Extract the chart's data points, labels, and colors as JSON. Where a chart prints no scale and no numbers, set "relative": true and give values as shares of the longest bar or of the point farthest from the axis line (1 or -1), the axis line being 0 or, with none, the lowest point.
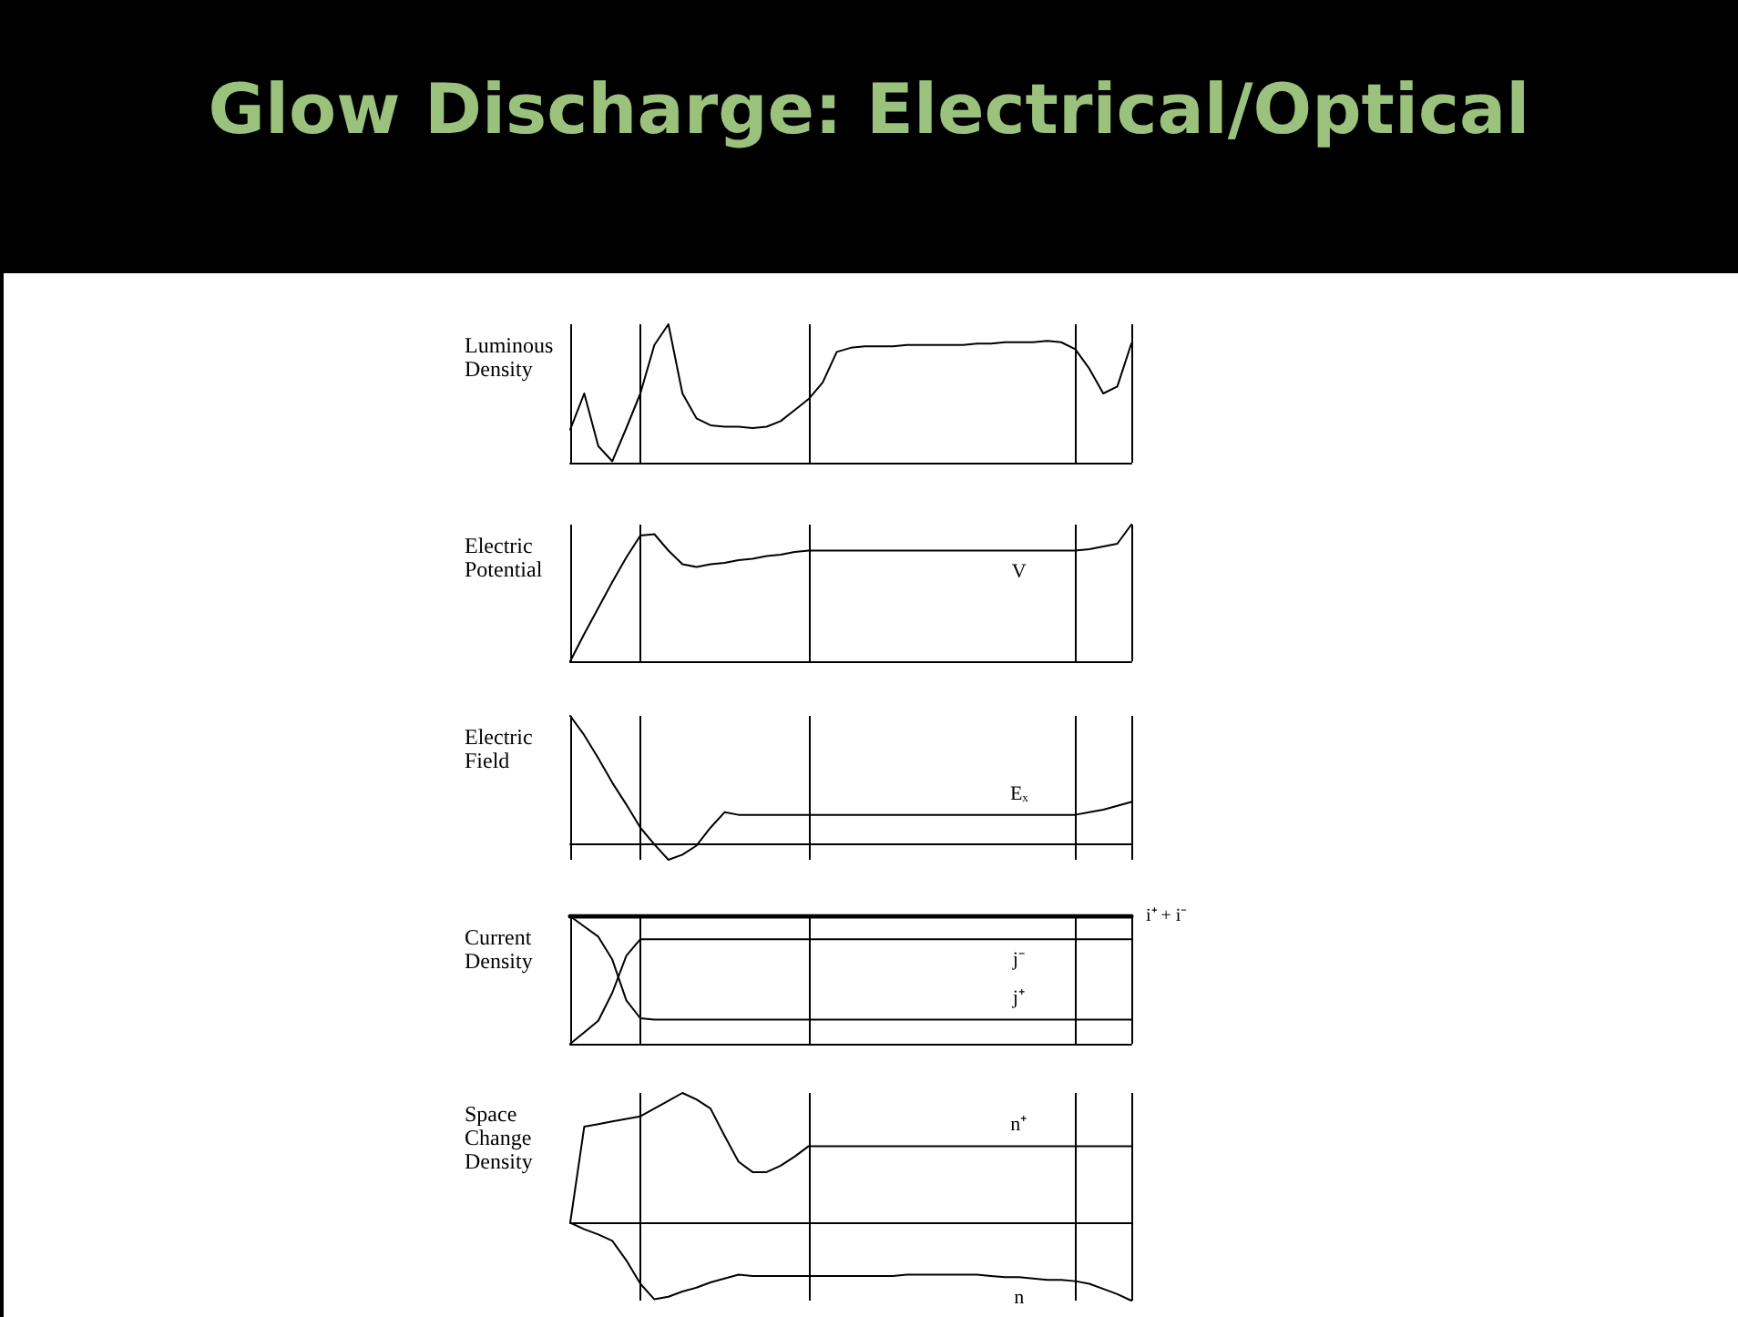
{
  "chart_data": [
    {
      "type": "line",
      "title": "Glow Discharge:  Electrical/Optical",
      "ylabel": "Luminous Density",
      "relative": true,
      "grid": "x",
      "legend": false,
      "marker": "none",
      "line_style": "solid",
      "categories": [
        null,
        null,
        null,
        null,
        null,
        null,
        null,
        null,
        null,
        null,
        null,
        null,
        null,
        null,
        null,
        null,
        null,
        null,
        null,
        null,
        null,
        null,
        null,
        null,
        null,
        null,
        null,
        null,
        null,
        null,
        null,
        null,
        null,
        null,
        null,
        null,
        null,
        null,
        null,
        null,
        null
      ],
      "series": [
        {
          "color": "#000000",
          "values": [
            0.24,
            0.5,
            0.12,
            0.01,
            0.25,
            0.5,
            0.85,
            1.0,
            0.5,
            0.32,
            0.27,
            0.26,
            0.26,
            0.25,
            0.26,
            0.3,
            0.38,
            0.46,
            0.58,
            0.8,
            0.83,
            0.84,
            0.84,
            0.84,
            0.85,
            0.85,
            0.85,
            0.85,
            0.85,
            0.86,
            0.86,
            0.87,
            0.87,
            0.87,
            0.88,
            0.87,
            0.82,
            0.68,
            0.5,
            0.55,
            0.86
          ]
        }
      ]
    },
    {
      "type": "line",
      "ylabel": "Electric Potential",
      "relative": true,
      "grid": "x",
      "legend": false,
      "marker": "none",
      "line_style": "solid",
      "categories": [
        null,
        null,
        null,
        null,
        null,
        null,
        null,
        null,
        null,
        null,
        null,
        null,
        null,
        null,
        null,
        null,
        null,
        null,
        null,
        null,
        null,
        null,
        null,
        null,
        null,
        null,
        null,
        null,
        null,
        null,
        null,
        null,
        null,
        null,
        null,
        null,
        null,
        null,
        null,
        null,
        null
      ],
      "series": [
        {
          "name": "V",
          "color": "#000000",
          "values": [
            0,
            0.2,
            0.39,
            0.58,
            0.76,
            0.92,
            0.93,
            0.81,
            0.71,
            0.69,
            0.71,
            0.72,
            0.74,
            0.75,
            0.77,
            0.78,
            0.8,
            0.81,
            0.81,
            0.81,
            0.81,
            0.81,
            0.81,
            0.81,
            0.81,
            0.81,
            0.81,
            0.81,
            0.81,
            0.81,
            0.81,
            0.81,
            0.81,
            0.81,
            0.81,
            0.81,
            0.81,
            0.82,
            0.84,
            0.86,
            1.0
          ]
        }
      ]
    },
    {
      "type": "line",
      "ylabel": "Electric Field",
      "relative": true,
      "grid": "x",
      "legend": false,
      "marker": "none",
      "line_style": "solid",
      "categories": [
        null,
        null,
        null,
        null,
        null,
        null,
        null,
        null,
        null,
        null,
        null,
        null,
        null,
        null,
        null,
        null,
        null,
        null,
        null,
        null,
        null,
        null,
        null,
        null,
        null,
        null,
        null,
        null,
        null,
        null,
        null,
        null,
        null,
        null,
        null,
        null,
        null,
        null,
        null,
        null,
        null
      ],
      "series": [
        {
          "name": "Eₓ",
          "color": "#000000",
          "values": [
            1.0,
            0.85,
            0.67,
            0.48,
            0.31,
            0.13,
            0,
            -0.12,
            -0.08,
            -0.01,
            0.13,
            0.25,
            0.23,
            0.23,
            0.23,
            0.23,
            0.23,
            0.23,
            0.23,
            0.23,
            0.23,
            0.23,
            0.23,
            0.23,
            0.23,
            0.23,
            0.23,
            0.23,
            0.23,
            0.23,
            0.23,
            0.23,
            0.23,
            0.23,
            0.23,
            0.23,
            0.23,
            0.25,
            0.27,
            0.3,
            0.33
          ]
        }
      ]
    },
    {
      "type": "line",
      "ylabel": "Current Density",
      "relative": true,
      "grid": "x",
      "legend": false,
      "marker": "none",
      "line_style": "solid",
      "categories": [
        null,
        null,
        null,
        null,
        null,
        null,
        null,
        null,
        null,
        null,
        null,
        null,
        null,
        null,
        null,
        null,
        null,
        null,
        null,
        null,
        null,
        null,
        null,
        null,
        null,
        null,
        null,
        null,
        null,
        null,
        null,
        null,
        null,
        null,
        null,
        null,
        null,
        null,
        null,
        null,
        null
      ],
      "series": [
        {
          "name": "i⁺ + i⁻",
          "color": "#000000",
          "values": [
            1,
            1,
            1,
            1,
            1,
            1,
            1,
            1,
            1,
            1,
            1,
            1,
            1,
            1,
            1,
            1,
            1,
            1,
            1,
            1,
            1,
            1,
            1,
            1,
            1,
            1,
            1,
            1,
            1,
            1,
            1,
            1,
            1,
            1,
            1,
            1,
            1,
            1,
            1,
            1,
            1
          ]
        },
        {
          "name": "j⁻",
          "color": "#000000",
          "values": [
            0,
            0.09,
            0.18,
            0.4,
            0.69,
            0.82,
            0.82,
            0.82,
            0.82,
            0.82,
            0.82,
            0.82,
            0.82,
            0.82,
            0.82,
            0.82,
            0.82,
            0.82,
            0.82,
            0.82,
            0.82,
            0.82,
            0.82,
            0.82,
            0.82,
            0.82,
            0.82,
            0.82,
            0.82,
            0.82,
            0.82,
            0.82,
            0.82,
            0.82,
            0.82,
            0.82,
            0.82,
            0.82,
            0.82,
            0.82,
            0.82
          ]
        },
        {
          "name": "j⁺",
          "color": "#000000",
          "values": [
            1.0,
            0.92,
            0.84,
            0.66,
            0.34,
            0.2,
            0.19,
            0.19,
            0.19,
            0.19,
            0.19,
            0.19,
            0.19,
            0.19,
            0.19,
            0.19,
            0.19,
            0.19,
            0.19,
            0.19,
            0.19,
            0.19,
            0.19,
            0.19,
            0.19,
            0.19,
            0.19,
            0.19,
            0.19,
            0.19,
            0.19,
            0.19,
            0.19,
            0.19,
            0.19,
            0.19,
            0.19,
            0.19,
            0.19,
            0.19,
            0.19
          ]
        }
      ]
    },
    {
      "type": "line",
      "ylabel": "Space Change Density",
      "relative": true,
      "grid": "x",
      "legend": false,
      "marker": "none",
      "line_style": "solid",
      "categories": [
        null,
        null,
        null,
        null,
        null,
        null,
        null,
        null,
        null,
        null,
        null,
        null,
        null,
        null,
        null,
        null,
        null,
        null,
        null,
        null,
        null,
        null,
        null,
        null,
        null,
        null,
        null,
        null,
        null,
        null,
        null,
        null,
        null,
        null,
        null,
        null,
        null,
        null,
        null,
        null,
        null
      ],
      "series": [
        {
          "name": "n⁺",
          "color": "#000000",
          "values": [
            0,
            0.74,
            0.76,
            0.78,
            0.8,
            0.82,
            0.88,
            0.94,
            1.0,
            0.95,
            0.88,
            0.67,
            0.47,
            0.39,
            0.39,
            0.44,
            0.51,
            0.59,
            0.59,
            0.59,
            0.59,
            0.59,
            0.59,
            0.59,
            0.59,
            0.59,
            0.59,
            0.59,
            0.59,
            0.59,
            0.59,
            0.59,
            0.59,
            0.59,
            0.59,
            0.59,
            0.59,
            0.59,
            0.59,
            0.59,
            0.59
          ]
        },
        {
          "name": "n",
          "color": "#000000",
          "values": [
            0,
            -0.05,
            -0.09,
            -0.14,
            -0.29,
            -0.47,
            -0.59,
            -0.57,
            -0.53,
            -0.5,
            -0.46,
            -0.43,
            -0.4,
            -0.41,
            -0.41,
            -0.41,
            -0.41,
            -0.41,
            -0.41,
            -0.41,
            -0.41,
            -0.41,
            -0.41,
            -0.41,
            -0.4,
            -0.4,
            -0.4,
            -0.4,
            -0.4,
            -0.4,
            -0.41,
            -0.42,
            -0.42,
            -0.43,
            -0.44,
            -0.44,
            -0.45,
            -0.47,
            -0.51,
            -0.55,
            -0.6
          ]
        }
      ]
    }
  ]
}
